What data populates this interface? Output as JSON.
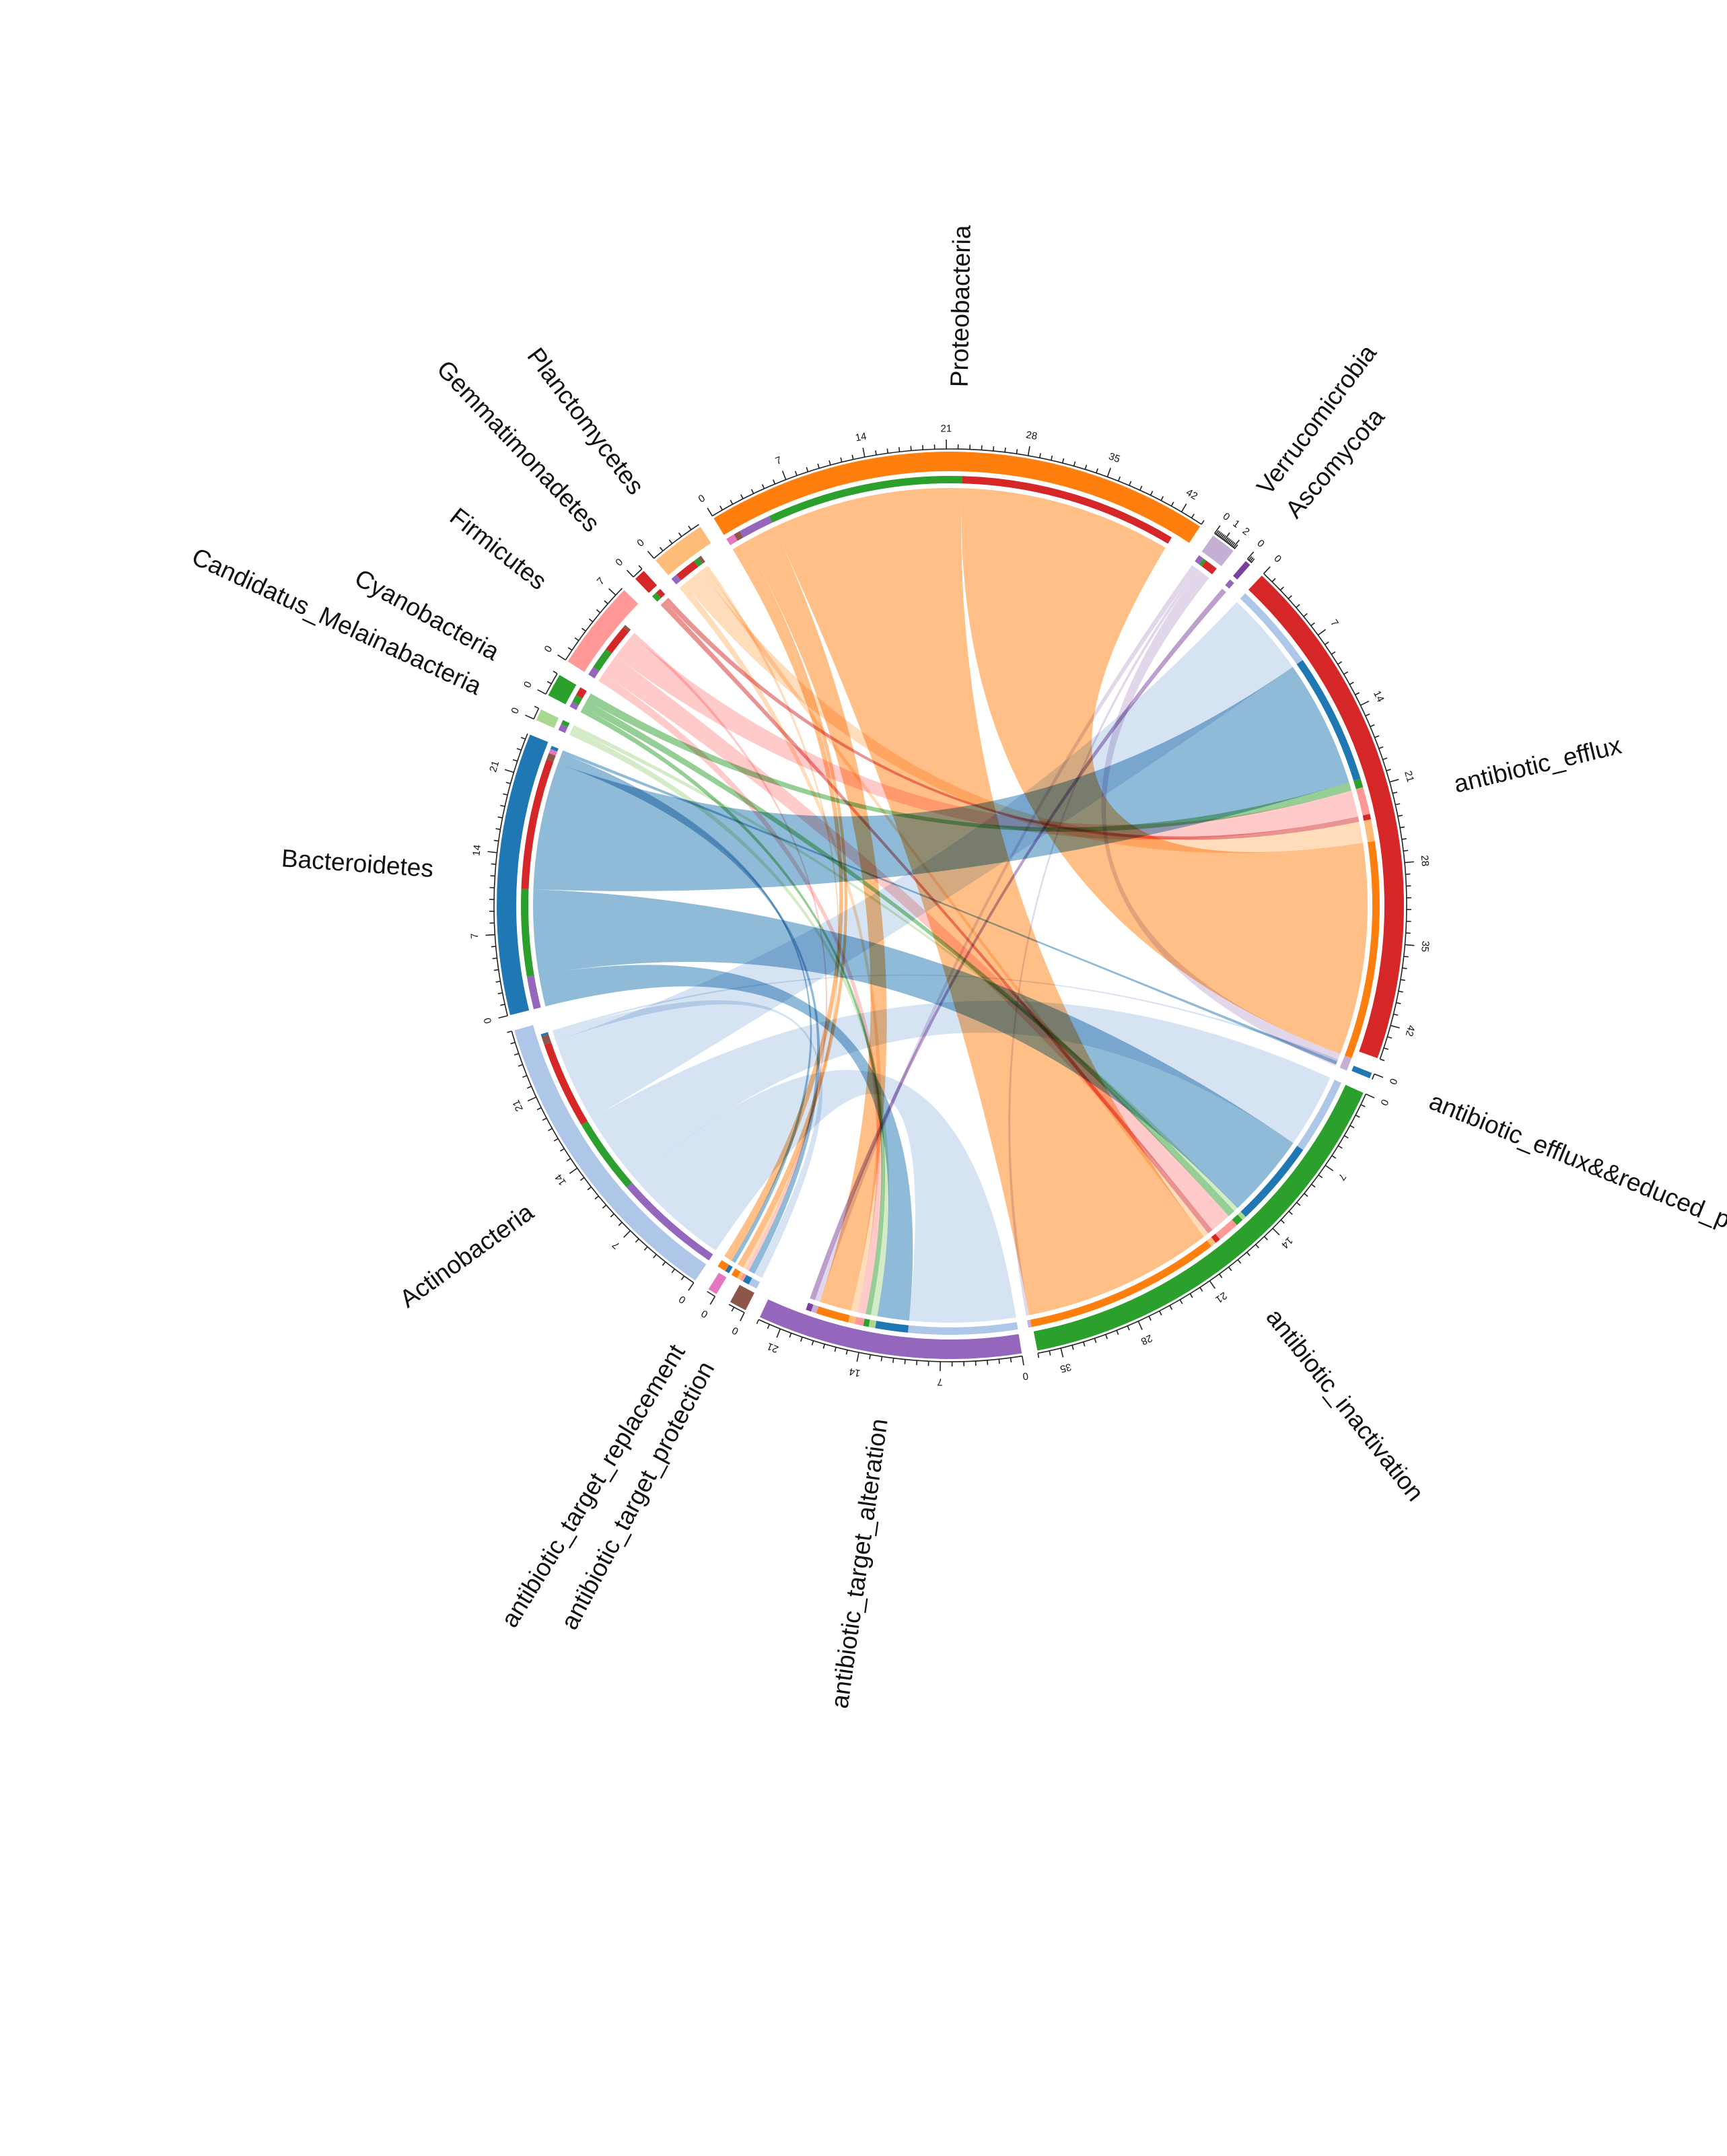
{
  "chart_data": {
    "type": "chord",
    "title": "",
    "sectors": [
      {
        "name": "Bacteroidetes",
        "value": 24.5,
        "color": "#1f77b4",
        "tick_step": 7
      },
      {
        "name": "Candidatus_Melainabacteria",
        "value": 1,
        "color": "#aad88f",
        "tick_step": 7
      },
      {
        "name": "Cyanobacteria",
        "value": 2,
        "color": "#2ca02c",
        "tick_step": 7
      },
      {
        "name": "Firmicutes",
        "value": 7.8,
        "color": "#ff9896",
        "tick_step": 7
      },
      {
        "name": "Gemmatimonadetes",
        "value": 1,
        "color": "#d62728",
        "tick_step": 7
      },
      {
        "name": "Planctomycetes",
        "value": 4.8,
        "color": "#ffbb78",
        "tick_step": 7
      },
      {
        "name": "Proteobacteria",
        "value": 44,
        "color": "#ff7f0e",
        "tick_step": 7
      },
      {
        "name": "Verrucomicrobia",
        "value": 2.2,
        "color": "#c5b0d5",
        "tick_step": 1
      },
      {
        "name": "Ascomycota",
        "value": 0.5,
        "color": "#7b3f9e",
        "tick_step": 1
      },
      {
        "name": "antibiotic_efflux",
        "value": 45,
        "color": "#d62728",
        "tick_step": 7
      },
      {
        "name": "antibiotic_efflux&&reduced_permeability_to_antibiotic",
        "value": 0.5,
        "color": "#1f77b4",
        "tick_step": 7
      },
      {
        "name": "antibiotic_inactivation",
        "value": 37,
        "color": "#2ca02c",
        "tick_step": 7
      },
      {
        "name": "antibiotic_target_alteration",
        "value": 23,
        "color": "#9467bd",
        "tick_step": 7
      },
      {
        "name": "antibiotic_target_protection",
        "value": 1.5,
        "color": "#8c564b",
        "tick_step": 7
      },
      {
        "name": "antibiotic_target_replacement",
        "value": 0.8,
        "color": "#e377c2",
        "tick_step": 7
      },
      {
        "name": "Actinobacteria",
        "value": 27,
        "color": "#aec7e8",
        "tick_step": 7
      }
    ],
    "links": [
      {
        "source": "Actinobacteria",
        "target": "antibiotic_target_alteration",
        "value": 10
      },
      {
        "source": "Actinobacteria",
        "target": "antibiotic_inactivation",
        "value": 7
      },
      {
        "source": "Actinobacteria",
        "target": "antibiotic_efflux",
        "value": 8
      },
      {
        "source": "Actinobacteria",
        "target": "antibiotic_target_protection",
        "value": 0.8
      },
      {
        "source": "Actinobacteria",
        "target": "antibiotic_efflux&&reduced_permeability_to_antibiotic",
        "value": 0.2
      },
      {
        "source": "Bacteroidetes",
        "target": "antibiotic_target_alteration",
        "value": 3
      },
      {
        "source": "Bacteroidetes",
        "target": "antibiotic_inactivation",
        "value": 8
      },
      {
        "source": "Bacteroidetes",
        "target": "antibiotic_efflux",
        "value": 12
      },
      {
        "source": "Bacteroidetes",
        "target": "antibiotic_target_protection",
        "value": 0.6
      },
      {
        "source": "Bacteroidetes",
        "target": "antibiotic_target_replacement",
        "value": 0.4
      },
      {
        "source": "Bacteroidetes",
        "target": "antibiotic_efflux&&reduced_permeability_to_antibiotic",
        "value": 0.3
      },
      {
        "source": "Candidatus_Melainabacteria",
        "target": "antibiotic_target_alteration",
        "value": 0.6
      },
      {
        "source": "Candidatus_Melainabacteria",
        "target": "antibiotic_inactivation",
        "value": 0.4
      },
      {
        "source": "Cyanobacteria",
        "target": "antibiotic_target_alteration",
        "value": 0.5
      },
      {
        "source": "Cyanobacteria",
        "target": "antibiotic_inactivation",
        "value": 0.7
      },
      {
        "source": "Cyanobacteria",
        "target": "antibiotic_efflux",
        "value": 0.8
      },
      {
        "source": "Firmicutes",
        "target": "antibiotic_target_alteration",
        "value": 0.8
      },
      {
        "source": "Firmicutes",
        "target": "antibiotic_inactivation",
        "value": 2
      },
      {
        "source": "Firmicutes",
        "target": "antibiotic_efflux",
        "value": 2.5
      },
      {
        "source": "Firmicutes",
        "target": "antibiotic_target_protection",
        "value": 0.3
      },
      {
        "source": "Gemmatimonadetes",
        "target": "antibiotic_inactivation",
        "value": 0.5
      },
      {
        "source": "Gemmatimonadetes",
        "target": "antibiotic_efflux",
        "value": 0.5
      },
      {
        "source": "Planctomycetes",
        "target": "antibiotic_target_alteration",
        "value": 0.6
      },
      {
        "source": "Planctomycetes",
        "target": "antibiotic_efflux",
        "value": 2
      },
      {
        "source": "Planctomycetes",
        "target": "antibiotic_inactivation",
        "value": 0.5
      },
      {
        "source": "Planctomycetes",
        "target": "antibiotic_target_protection",
        "value": 0.3
      },
      {
        "source": "Proteobacteria",
        "target": "antibiotic_target_replacement",
        "value": 0.8
      },
      {
        "source": "Proteobacteria",
        "target": "antibiotic_target_protection",
        "value": 0.6
      },
      {
        "source": "Proteobacteria",
        "target": "antibiotic_target_alteration",
        "value": 3
      },
      {
        "source": "Proteobacteria",
        "target": "antibiotic_inactivation",
        "value": 18
      },
      {
        "source": "Proteobacteria",
        "target": "antibiotic_efflux",
        "value": 20
      },
      {
        "source": "Verrucomicrobia",
        "target": "antibiotic_target_alteration",
        "value": 0.5
      },
      {
        "source": "Verrucomicrobia",
        "target": "antibiotic_inactivation",
        "value": 0.3
      },
      {
        "source": "Verrucomicrobia",
        "target": "antibiotic_efflux",
        "value": 1.2
      },
      {
        "source": "Ascomycota",
        "target": "antibiotic_target_alteration",
        "value": 0.5
      }
    ],
    "grid": false,
    "legend": "none"
  }
}
